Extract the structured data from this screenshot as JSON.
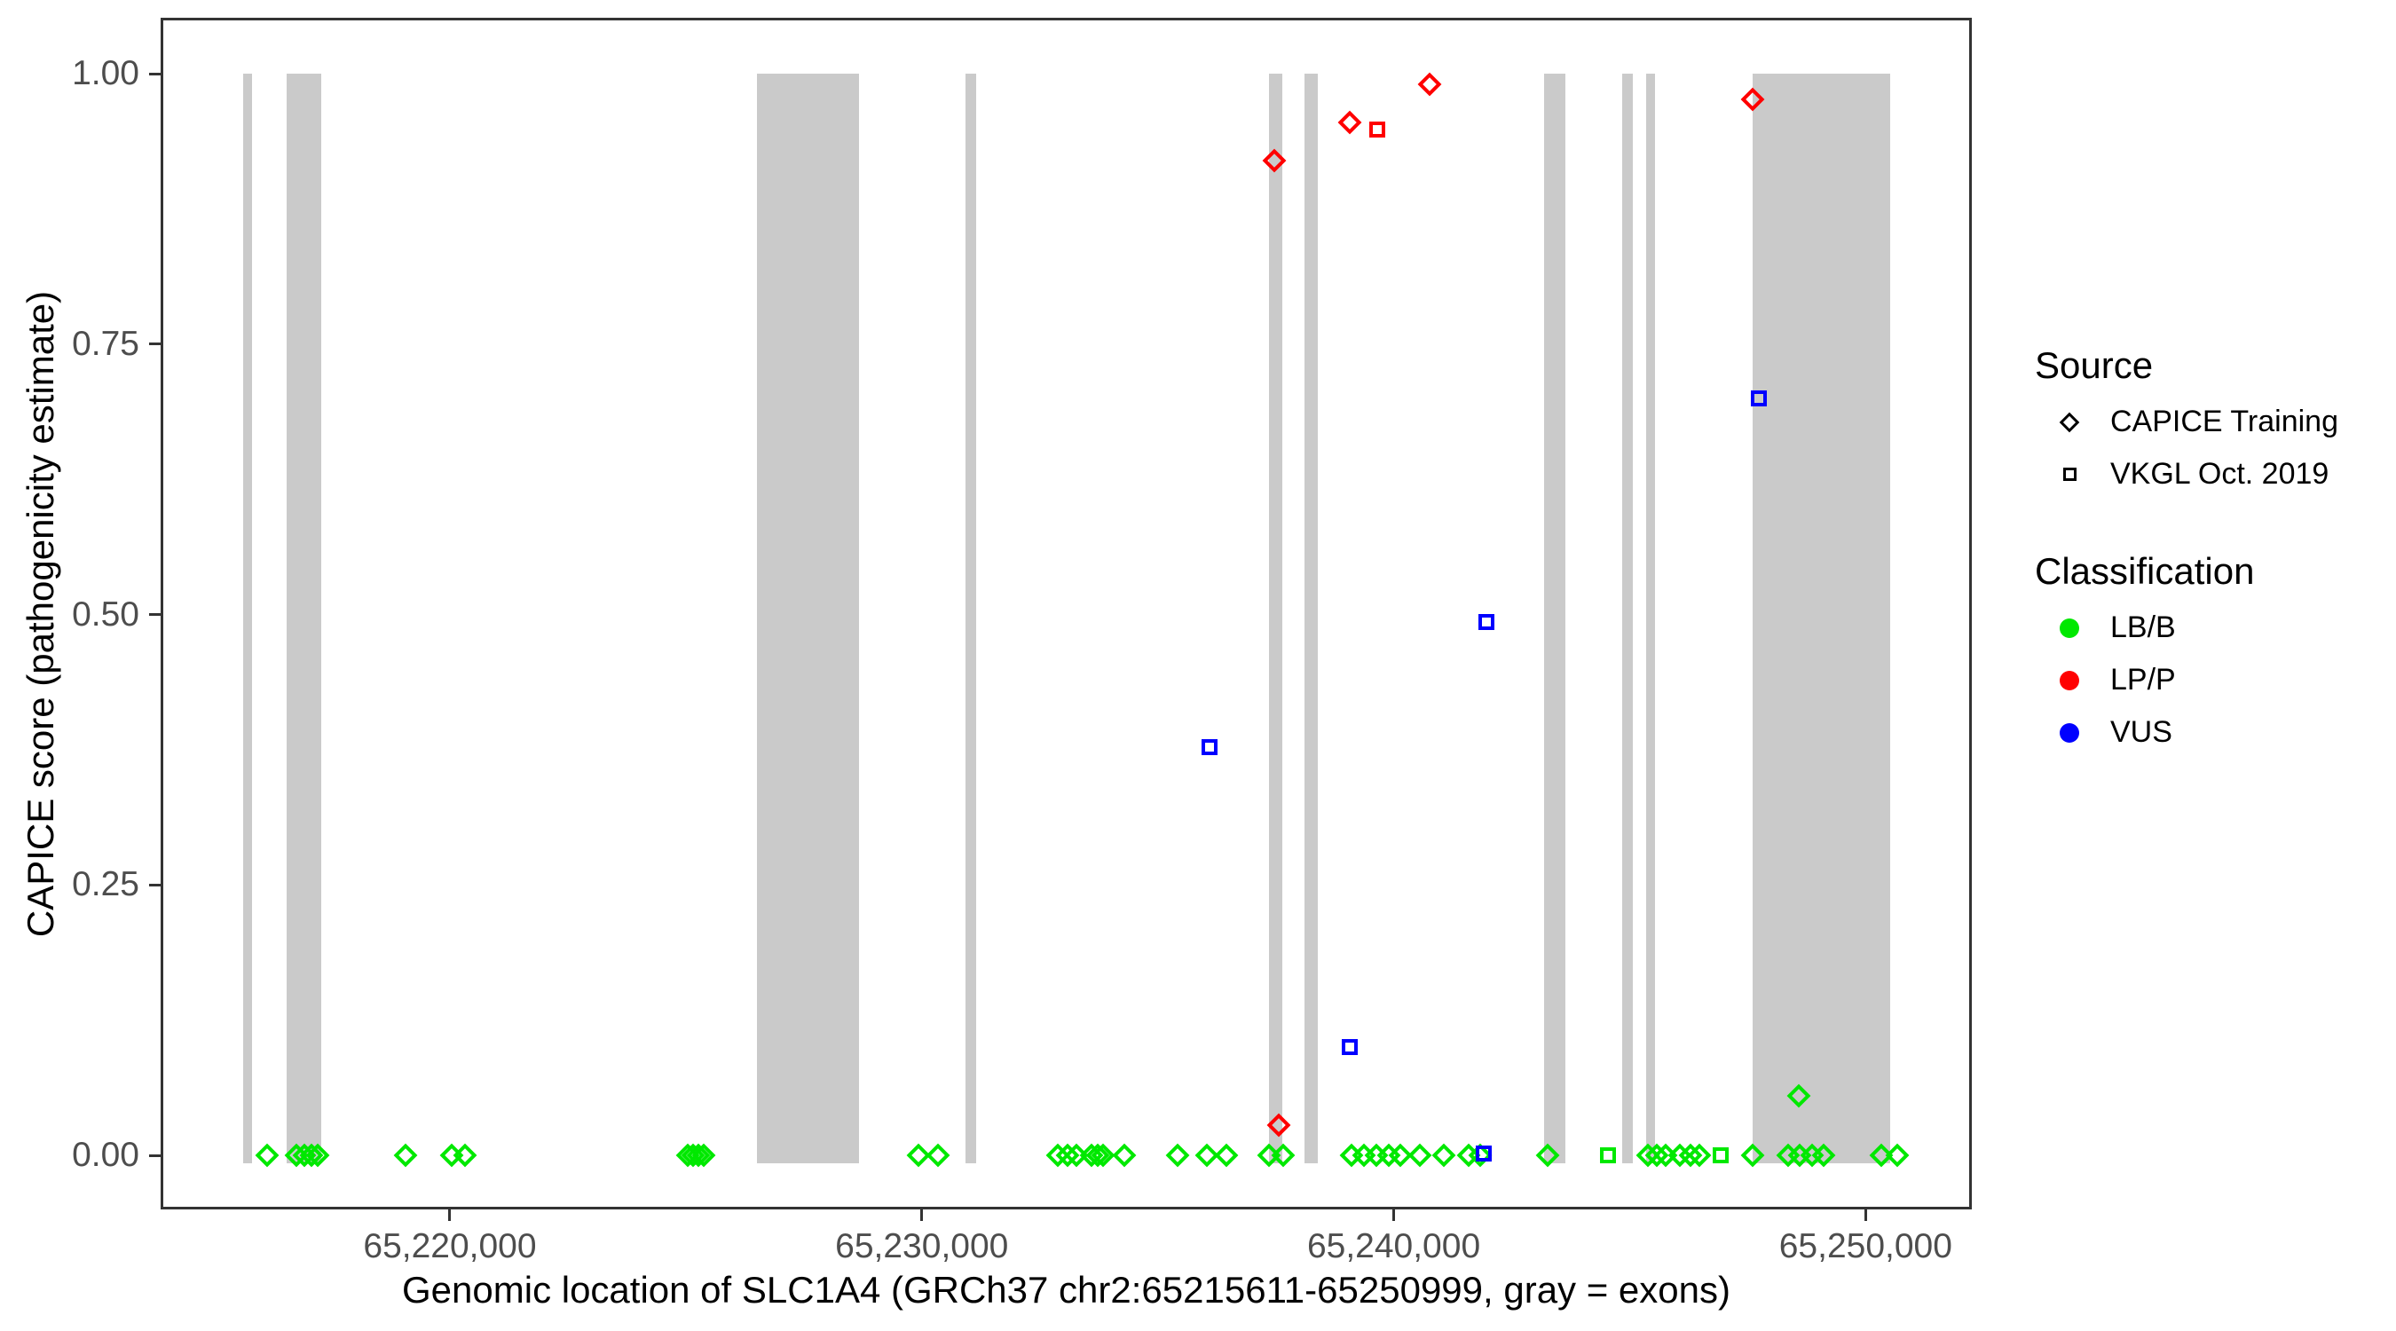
{
  "figure": {
    "background": "#FFFFFF"
  },
  "colors": {
    "exon_gray": "#CACACA",
    "axis_text": "#4D4D4D",
    "panel_border": "#333333",
    "classification": {
      "LB/B": "#00E800",
      "LP/P": "#FF0000",
      "VUS": "#0000FF"
    }
  },
  "legend": {
    "source": {
      "title": "Source",
      "items": [
        {
          "label": "CAPICE Training",
          "marker": "diamond"
        },
        {
          "label": "VKGL Oct. 2019",
          "marker": "square"
        }
      ]
    },
    "classification": {
      "title": "Classification",
      "items": [
        {
          "label": "LB/B",
          "color": "#00E800"
        },
        {
          "label": "LP/P",
          "color": "#FF0000"
        },
        {
          "label": "VUS",
          "color": "#0000FF"
        }
      ]
    }
  },
  "chart_data": {
    "type": "scatter",
    "xlabel": "Genomic location of SLC1A4 (GRCh37 chr2:65215611-65250999, gray = exons)",
    "ylabel": "CAPICE score (pathogenicity estimate)",
    "x_domain": [
      65213870,
      65252250
    ],
    "y_domain": [
      -0.05,
      1.0517
    ],
    "x_ticks": [
      {
        "v": 65220000,
        "label": "65,220,000"
      },
      {
        "v": 65230000,
        "label": "65,230,000"
      },
      {
        "v": 65240000,
        "label": "65,240,000"
      },
      {
        "v": 65250000,
        "label": "65,250,000"
      }
    ],
    "y_ticks": [
      {
        "v": 1.0,
        "label": "1.00"
      },
      {
        "v": 0.75,
        "label": "0.75"
      },
      {
        "v": 0.5,
        "label": "0.50"
      },
      {
        "v": 0.25,
        "label": "0.25"
      },
      {
        "v": 0.0,
        "label": "0.00"
      }
    ],
    "exons": [
      [
        65215611,
        65215800
      ],
      [
        65216540,
        65217280
      ],
      [
        65226510,
        65228670
      ],
      [
        65230930,
        65231150
      ],
      [
        65237360,
        65237640
      ],
      [
        65238110,
        65238390
      ],
      [
        65243190,
        65243640
      ],
      [
        65244840,
        65245070
      ],
      [
        65245350,
        65245540
      ],
      [
        65247610,
        65250520
      ]
    ],
    "series": [
      {
        "source": "CAPICE Training",
        "classification": "LB/B",
        "marker": "diamond",
        "points": [
          [
            65216130,
            0
          ],
          [
            65216750,
            0
          ],
          [
            65216920,
            0
          ],
          [
            65217070,
            0
          ],
          [
            65217200,
            0
          ],
          [
            65219060,
            0
          ],
          [
            65220040,
            0
          ],
          [
            65220320,
            0
          ],
          [
            65225040,
            0
          ],
          [
            65225150,
            0
          ],
          [
            65225270,
            0
          ],
          [
            65225380,
            0
          ],
          [
            65229930,
            0
          ],
          [
            65230340,
            0
          ],
          [
            65232880,
            0
          ],
          [
            65233090,
            0
          ],
          [
            65233280,
            0
          ],
          [
            65233600,
            0
          ],
          [
            65233730,
            0
          ],
          [
            65233840,
            0
          ],
          [
            65234290,
            0
          ],
          [
            65235420,
            0
          ],
          [
            65236040,
            0
          ],
          [
            65236460,
            0
          ],
          [
            65237360,
            0
          ],
          [
            65237660,
            0
          ],
          [
            65239110,
            0
          ],
          [
            65239370,
            0
          ],
          [
            65239630,
            0
          ],
          [
            65239900,
            0
          ],
          [
            65240140,
            0
          ],
          [
            65240560,
            0
          ],
          [
            65241060,
            0
          ],
          [
            65241590,
            0
          ],
          [
            65241830,
            0
          ],
          [
            65243260,
            0
          ],
          [
            65245390,
            0
          ],
          [
            65245580,
            0
          ],
          [
            65245760,
            0
          ],
          [
            65246070,
            0
          ],
          [
            65246290,
            0
          ],
          [
            65246480,
            0
          ],
          [
            65247610,
            0
          ],
          [
            65248360,
            0
          ],
          [
            65248600,
            0
          ],
          [
            65248870,
            0
          ],
          [
            65249110,
            0
          ],
          [
            65250330,
            0
          ],
          [
            65250670,
            0
          ],
          [
            65248580,
            0.055
          ]
        ]
      },
      {
        "source": "CAPICE Training",
        "classification": "LP/P",
        "marker": "diamond",
        "points": [
          [
            65237470,
            0.92
          ],
          [
            65239070,
            0.955
          ],
          [
            65240760,
            0.99
          ],
          [
            65247610,
            0.976
          ],
          [
            65237570,
            0.028
          ]
        ]
      },
      {
        "source": "VKGL Oct. 2019",
        "classification": "LP/P",
        "marker": "square",
        "points": [
          [
            65239650,
            0.948
          ]
        ]
      },
      {
        "source": "VKGL Oct. 2019",
        "classification": "LB/B",
        "marker": "square",
        "points": [
          [
            65244540,
            0
          ],
          [
            65246930,
            0
          ]
        ]
      },
      {
        "source": "VKGL Oct. 2019",
        "classification": "VUS",
        "marker": "square",
        "points": [
          [
            65236100,
            0.377
          ],
          [
            65239070,
            0.1
          ],
          [
            65241970,
            0.493
          ],
          [
            65247740,
            0.7
          ],
          [
            65241910,
            0.002
          ]
        ]
      }
    ]
  }
}
